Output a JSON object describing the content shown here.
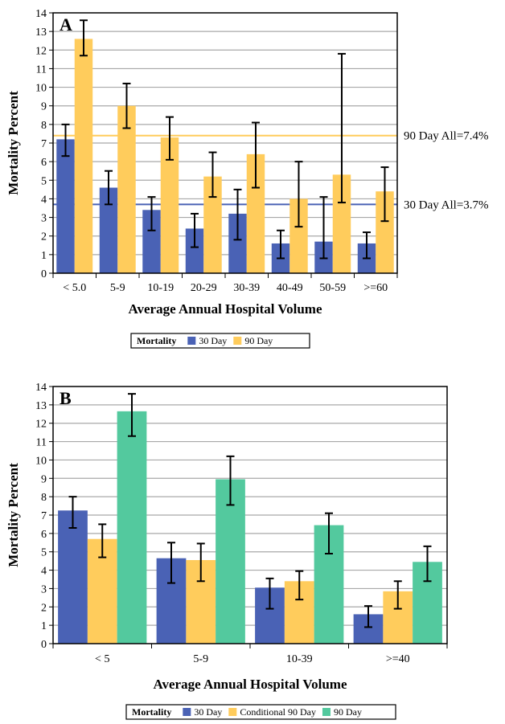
{
  "chart_data": [
    {
      "type": "bar",
      "panel": "A",
      "categories": [
        "< 5.0",
        "5-9",
        "10-19",
        "20-29",
        "30-39",
        "40-49",
        "50-59",
        ">=60"
      ],
      "series": [
        {
          "name": "30 Day",
          "color": "#4a62b5",
          "values": [
            7.2,
            4.6,
            3.4,
            2.4,
            3.2,
            1.6,
            1.7,
            1.6
          ],
          "err_low": [
            6.3,
            3.7,
            2.3,
            1.4,
            1.8,
            0.8,
            0.8,
            0.8
          ],
          "err_high": [
            8.0,
            5.5,
            4.1,
            3.2,
            4.5,
            2.3,
            4.1,
            2.2
          ]
        },
        {
          "name": "90 Day",
          "color": "#ffcc5c",
          "values": [
            12.6,
            9.0,
            7.3,
            5.2,
            6.4,
            4.0,
            5.3,
            4.4
          ],
          "err_low": [
            11.7,
            7.8,
            6.1,
            4.1,
            4.6,
            2.5,
            3.8,
            2.8
          ],
          "err_high": [
            13.6,
            10.2,
            8.4,
            6.5,
            8.1,
            6.0,
            11.8,
            5.7
          ]
        }
      ],
      "reference_lines": [
        {
          "label": "90 Day All=7.4%",
          "value": 7.4,
          "color": "#ffcc5c"
        },
        {
          "label": "30 Day All=3.7%",
          "value": 3.7,
          "color": "#4a62b5"
        }
      ],
      "xlabel": "Average Annual Hospital Volume",
      "ylabel": "Mortality Percent",
      "ylim": [
        0,
        14
      ],
      "yticks": [
        "0",
        "1",
        "2",
        "3",
        "4",
        "5",
        "6",
        "7",
        "8",
        "9",
        "10",
        "11",
        "12",
        "13",
        "14"
      ],
      "grid": true,
      "legend": {
        "title": "Mortality",
        "position": "bottom",
        "items": [
          "30 Day",
          "90 Day"
        ]
      }
    },
    {
      "type": "bar",
      "panel": "B",
      "categories": [
        "< 5",
        "5-9",
        "10-39",
        ">=40"
      ],
      "series": [
        {
          "name": "30 Day",
          "color": "#4a62b5",
          "values": [
            7.25,
            4.65,
            3.05,
            1.6
          ],
          "err_low": [
            6.3,
            3.3,
            1.9,
            0.9
          ],
          "err_high": [
            8.0,
            5.5,
            3.55,
            2.05
          ]
        },
        {
          "name": "Conditional 90 Day",
          "color": "#ffcc5c",
          "values": [
            5.7,
            4.55,
            3.4,
            2.85
          ],
          "err_low": [
            4.7,
            3.4,
            2.4,
            1.9
          ],
          "err_high": [
            6.5,
            5.45,
            3.95,
            3.4
          ]
        },
        {
          "name": "90 Day",
          "color": "#53c99e",
          "values": [
            12.65,
            8.95,
            6.45,
            4.45
          ],
          "err_low": [
            11.3,
            7.55,
            4.9,
            3.4
          ],
          "err_high": [
            13.6,
            10.2,
            7.1,
            5.3
          ]
        }
      ],
      "xlabel": "Average Annual Hospital Volume",
      "ylabel": "Mortality Percent",
      "ylim": [
        0,
        14
      ],
      "yticks": [
        "0",
        "1",
        "2",
        "3",
        "4",
        "5",
        "6",
        "7",
        "8",
        "9",
        "10",
        "11",
        "12",
        "13",
        "14"
      ],
      "grid": true,
      "legend": {
        "title": "Mortality",
        "position": "bottom",
        "items": [
          "30 Day",
          "Conditional 90 Day",
          "90 Day"
        ]
      }
    }
  ]
}
